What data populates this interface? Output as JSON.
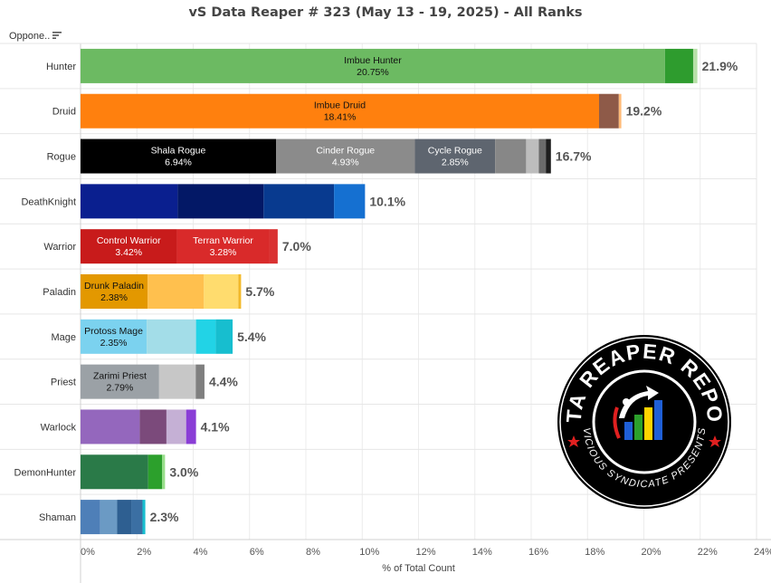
{
  "title": "vS Data Reaper # 323 (May 13 - 19, 2025) - All Ranks",
  "row_header": "Oppone..",
  "logo": {
    "text_top": "DATA REAPER REPORT",
    "text_bottom": "VICIOUS SYNDICATE PRESENTS"
  },
  "chart_data": {
    "type": "bar",
    "orientation": "horizontal",
    "stacked": true,
    "xlabel": "% of Total Count",
    "xlim": [
      0,
      24
    ],
    "x_ticks": [
      "0%",
      "2%",
      "4%",
      "6%",
      "8%",
      "10%",
      "12%",
      "14%",
      "16%",
      "18%",
      "20%",
      "22%",
      "24%"
    ],
    "grid": true,
    "categories": [
      {
        "name": "Hunter",
        "total": 21.9,
        "total_label": "21.9%",
        "segments": [
          {
            "label": "Imbue Hunter",
            "value": 20.75,
            "value_label": "20.75%",
            "color": "#6cba62"
          },
          {
            "label": "",
            "value": 1.0,
            "value_label": "",
            "color": "#2e9c2e"
          },
          {
            "label": "",
            "value": 0.15,
            "value_label": "",
            "color": "#b7e0a8"
          }
        ]
      },
      {
        "name": "Druid",
        "total": 19.2,
        "total_label": "19.2%",
        "segments": [
          {
            "label": "Imbue Druid",
            "value": 18.41,
            "value_label": "18.41%",
            "color": "#ff800e"
          },
          {
            "label": "",
            "value": 0.7,
            "value_label": "",
            "color": "#8e5a48"
          },
          {
            "label": "",
            "value": 0.09,
            "value_label": "",
            "color": "#ffbb78"
          }
        ]
      },
      {
        "name": "Rogue",
        "total": 16.7,
        "total_label": "16.7%",
        "segments": [
          {
            "label": "Shala Rogue",
            "value": 6.94,
            "value_label": "6.94%",
            "color": "#000000"
          },
          {
            "label": "Cinder Rogue",
            "value": 4.93,
            "value_label": "4.93%",
            "color": "#8b8b8b"
          },
          {
            "label": "Cycle Rogue",
            "value": 2.85,
            "value_label": "2.85%",
            "color": "#5e656f"
          },
          {
            "label": "",
            "value": 1.1,
            "value_label": "",
            "color": "#878787"
          },
          {
            "label": "",
            "value": 0.45,
            "value_label": "",
            "color": "#bdbdbd"
          },
          {
            "label": "",
            "value": 0.25,
            "value_label": "",
            "color": "#6b6b6b"
          },
          {
            "label": "",
            "value": 0.18,
            "value_label": "",
            "color": "#1e1e1e"
          }
        ]
      },
      {
        "name": "DeathKnight",
        "total": 10.1,
        "total_label": "10.1%",
        "segments": [
          {
            "label": "",
            "value": 3.45,
            "value_label": "",
            "color": "#0a1f8f"
          },
          {
            "label": "",
            "value": 3.05,
            "value_label": "",
            "color": "#031866"
          },
          {
            "label": "",
            "value": 2.5,
            "value_label": "",
            "color": "#083a8f"
          },
          {
            "label": "",
            "value": 1.1,
            "value_label": "",
            "color": "#1570d1"
          }
        ]
      },
      {
        "name": "Warrior",
        "total": 7.0,
        "total_label": "7.0%",
        "segments": [
          {
            "label": "Control Warrior",
            "value": 3.42,
            "value_label": "3.42%",
            "color": "#c81b1b"
          },
          {
            "label": "Terran Warrior",
            "value": 3.28,
            "value_label": "3.28%",
            "color": "#d92a2a"
          },
          {
            "label": "",
            "value": 0.3,
            "value_label": "",
            "color": "#d93131"
          }
        ]
      },
      {
        "name": "Paladin",
        "total": 5.7,
        "total_label": "5.7%",
        "segments": [
          {
            "label": "Drunk Paladin",
            "value": 2.38,
            "value_label": "2.38%",
            "color": "#e39800"
          },
          {
            "label": "",
            "value": 2.0,
            "value_label": "",
            "color": "#ffc04e"
          },
          {
            "label": "",
            "value": 1.22,
            "value_label": "",
            "color": "#ffdc6e"
          },
          {
            "label": "",
            "value": 0.1,
            "value_label": "",
            "color": "#f2b92a"
          }
        ]
      },
      {
        "name": "Mage",
        "total": 5.4,
        "total_label": "5.4%",
        "segments": [
          {
            "label": "Protoss Mage",
            "value": 2.35,
            "value_label": "2.35%",
            "color": "#7bd2ef"
          },
          {
            "label": "",
            "value": 1.75,
            "value_label": "",
            "color": "#a3dde8"
          },
          {
            "label": "",
            "value": 0.7,
            "value_label": "",
            "color": "#22d3e6"
          },
          {
            "label": "",
            "value": 0.6,
            "value_label": "",
            "color": "#17becf"
          }
        ]
      },
      {
        "name": "Priest",
        "total": 4.4,
        "total_label": "4.4%",
        "segments": [
          {
            "label": "Zarimi Priest",
            "value": 2.79,
            "value_label": "2.79%",
            "color": "#9ba1a6"
          },
          {
            "label": "",
            "value": 1.3,
            "value_label": "",
            "color": "#c7c7c7"
          },
          {
            "label": "",
            "value": 0.31,
            "value_label": "",
            "color": "#7f7f7f"
          }
        ]
      },
      {
        "name": "Warlock",
        "total": 4.1,
        "total_label": "4.1%",
        "segments": [
          {
            "label": "",
            "value": 2.1,
            "value_label": "",
            "color": "#9467bd"
          },
          {
            "label": "",
            "value": 0.95,
            "value_label": "",
            "color": "#7b4a7b"
          },
          {
            "label": "",
            "value": 0.7,
            "value_label": "",
            "color": "#c5b0d5"
          },
          {
            "label": "",
            "value": 0.35,
            "value_label": "",
            "color": "#8a3dd6"
          }
        ]
      },
      {
        "name": "DemonHunter",
        "total": 3.0,
        "total_label": "3.0%",
        "segments": [
          {
            "label": "",
            "value": 2.4,
            "value_label": "",
            "color": "#2a7a48"
          },
          {
            "label": "",
            "value": 0.5,
            "value_label": "",
            "color": "#2ca02c"
          },
          {
            "label": "",
            "value": 0.1,
            "value_label": "",
            "color": "#98df8a"
          }
        ]
      },
      {
        "name": "Shaman",
        "total": 2.3,
        "total_label": "2.3%",
        "segments": [
          {
            "label": "",
            "value": 0.7,
            "value_label": "",
            "color": "#4e7fb8"
          },
          {
            "label": "",
            "value": 0.6,
            "value_label": "",
            "color": "#6b9ac4"
          },
          {
            "label": "",
            "value": 0.5,
            "value_label": "",
            "color": "#2e5f91"
          },
          {
            "label": "",
            "value": 0.4,
            "value_label": "",
            "color": "#3b6fa3"
          },
          {
            "label": "",
            "value": 0.1,
            "value_label": "",
            "color": "#17becf"
          }
        ]
      }
    ]
  }
}
